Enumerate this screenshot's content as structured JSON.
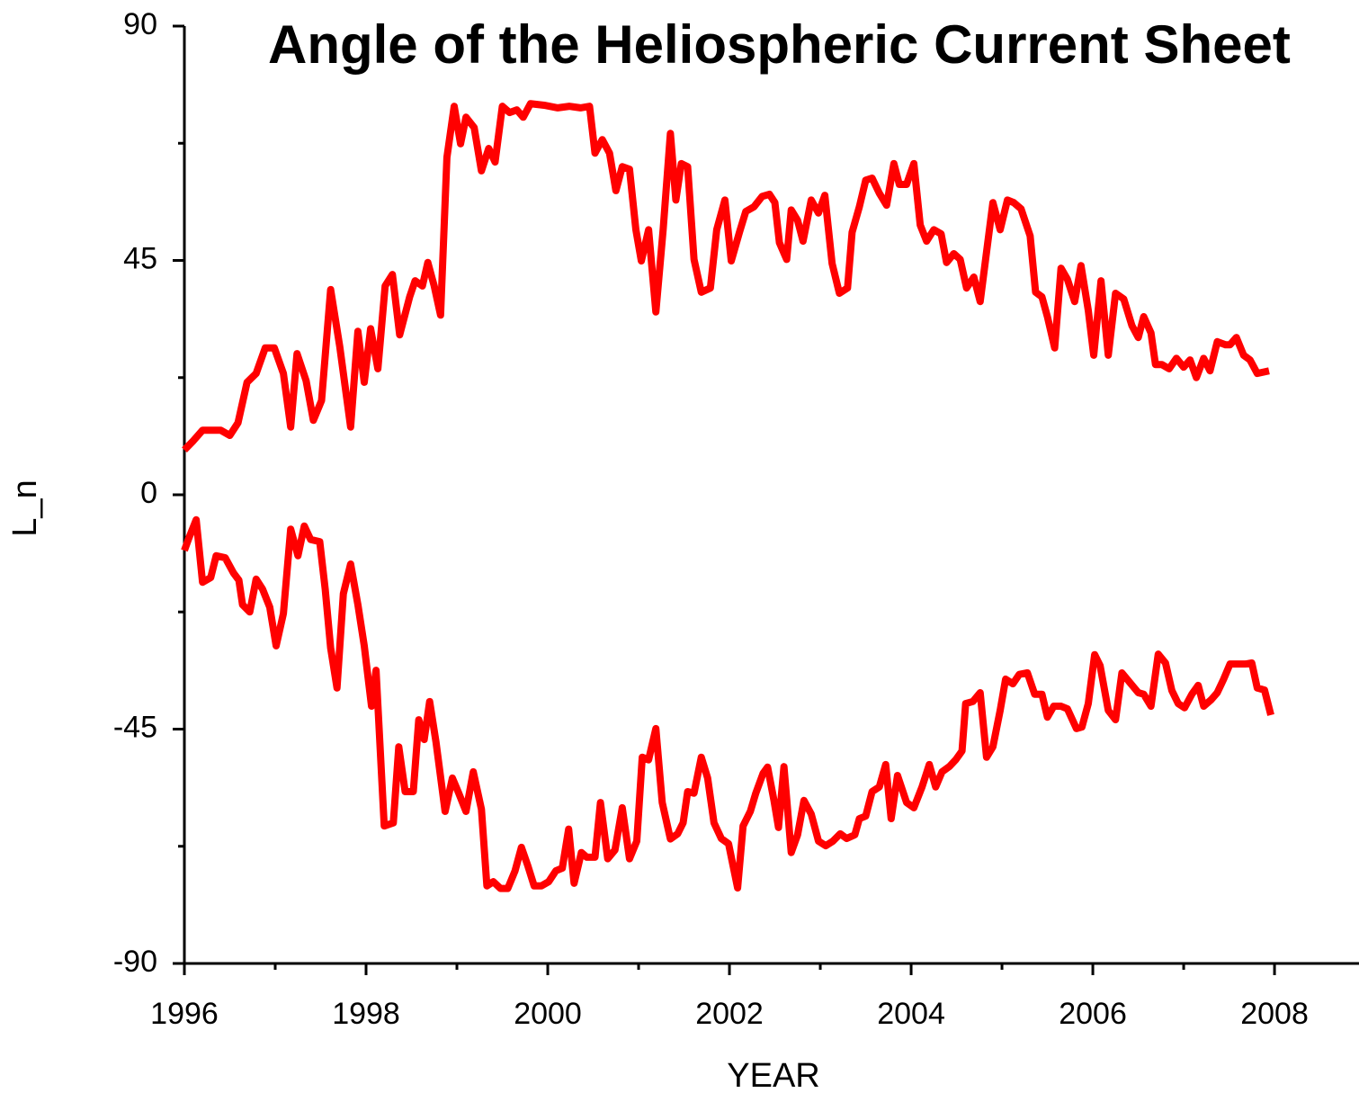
{
  "chart_data": {
    "type": "line",
    "title": "Angle of the Heliospheric Current Sheet",
    "xlabel": "YEAR",
    "ylabel": "L_n",
    "xlim": [
      1996,
      2008.93
    ],
    "ylim": [
      -90,
      90
    ],
    "xticks": [
      1996,
      1998,
      2000,
      2002,
      2004,
      2006,
      2008
    ],
    "xticks_minor": [
      1997,
      1999,
      2001,
      2003,
      2005,
      2007
    ],
    "yticks": [
      -90,
      -45,
      0,
      45,
      90
    ],
    "yticks_minor": [
      -67.5,
      -22.5,
      22.5,
      67.5
    ],
    "grid": false,
    "series": [
      {
        "color": "#ff0000",
        "x": [
          1996.0,
          1996.1,
          1996.2,
          1996.4,
          1996.5,
          1996.59,
          1996.69,
          1996.79,
          1996.89,
          1996.99,
          1997.09,
          1997.17,
          1997.24,
          1997.34,
          1997.42,
          1997.51,
          1997.61,
          1997.71,
          1997.83,
          1997.91,
          1997.98,
          1998.05,
          1998.13,
          1998.21,
          1998.29,
          1998.37,
          1998.48,
          1998.54,
          1998.62,
          1998.68,
          1998.75,
          1998.82,
          1998.89,
          1998.97,
          1999.04,
          1999.1,
          1999.19,
          1999.27,
          1999.35,
          1999.42,
          1999.5,
          1999.58,
          1999.66,
          1999.73,
          1999.81,
          1999.96,
          2000.11,
          2000.24,
          2000.36,
          2000.46,
          2000.52,
          2000.6,
          2000.68,
          2000.75,
          2000.82,
          2000.9,
          2000.97,
          2001.03,
          2001.11,
          2001.19,
          2001.27,
          2001.35,
          2001.41,
          2001.47,
          2001.54,
          2001.61,
          2001.69,
          2001.79,
          2001.86,
          2001.95,
          2002.02,
          2002.11,
          2002.18,
          2002.27,
          2002.36,
          2002.44,
          2002.5,
          2002.55,
          2002.63,
          2002.68,
          2002.75,
          2002.81,
          2002.9,
          2002.98,
          2003.05,
          2003.13,
          2003.21,
          2003.3,
          2003.35,
          2003.43,
          2003.5,
          2003.57,
          2003.65,
          2003.73,
          2003.81,
          2003.87,
          2003.95,
          2004.03,
          2004.1,
          2004.17,
          2004.25,
          2004.33,
          2004.39,
          2004.47,
          2004.54,
          2004.61,
          2004.69,
          2004.76,
          2004.83,
          2004.9,
          2004.98,
          2005.06,
          2005.13,
          2005.21,
          2005.31,
          2005.37,
          2005.44,
          2005.5,
          2005.58,
          2005.65,
          2005.72,
          2005.8,
          2005.87,
          2005.95,
          2006.01,
          2006.09,
          2006.17,
          2006.25,
          2006.34,
          2006.43,
          2006.5,
          2006.56,
          2006.64,
          2006.69,
          2006.76,
          2006.84,
          2006.92,
          2007.0,
          2007.07,
          2007.14,
          2007.22,
          2007.29,
          2007.37,
          2007.46,
          2007.51,
          2007.58,
          2007.66,
          2007.73,
          2007.81,
          2007.94
        ],
        "values": [
          8.6,
          10.4,
          12.4,
          12.4,
          11.4,
          13.8,
          21.6,
          23.3,
          28.2,
          28.2,
          23.3,
          13.0,
          27.1,
          21.9,
          14.3,
          18.1,
          39.4,
          28.5,
          13.0,
          31.4,
          21.6,
          31.9,
          24.2,
          40.1,
          42.3,
          30.7,
          38.0,
          41.1,
          40.1,
          44.6,
          40.1,
          34.5,
          64.8,
          74.6,
          67.4,
          72.5,
          70.5,
          62.2,
          66.5,
          63.9,
          74.6,
          73.4,
          73.9,
          72.5,
          75.1,
          74.8,
          74.3,
          74.6,
          74.3,
          74.6,
          65.6,
          68.2,
          65.6,
          58.4,
          63.0,
          62.5,
          50.9,
          44.9,
          50.9,
          35.1,
          50.9,
          69.4,
          56.6,
          63.6,
          63.0,
          45.2,
          38.9,
          39.7,
          50.9,
          56.6,
          44.9,
          50.4,
          54.4,
          55.3,
          57.3,
          57.7,
          56.1,
          48.4,
          45.2,
          54.7,
          52.7,
          48.7,
          56.6,
          54.1,
          57.5,
          44.4,
          38.7,
          39.7,
          50.4,
          55.3,
          60.4,
          60.8,
          57.9,
          55.6,
          63.6,
          59.6,
          59.6,
          63.6,
          51.8,
          48.7,
          50.9,
          50.1,
          44.6,
          46.3,
          45.2,
          39.7,
          41.8,
          37.1,
          46.6,
          56.1,
          50.9,
          56.6,
          56.1,
          54.9,
          49.7,
          38.9,
          38.0,
          34.2,
          28.2,
          43.5,
          41.4,
          37.1,
          44.0,
          35.4,
          26.8,
          41.1,
          26.8,
          38.7,
          37.6,
          32.5,
          30.2,
          34.2,
          31.1,
          25.0,
          25.0,
          24.2,
          26.2,
          24.5,
          25.9,
          22.5,
          26.2,
          23.8,
          29.4,
          28.8,
          28.8,
          30.2,
          26.8,
          25.9,
          23.3,
          23.8
        ]
      },
      {
        "color": "#ff0000",
        "x": [
          1996.0,
          1996.05,
          1996.13,
          1996.2,
          1996.29,
          1996.35,
          1996.45,
          1996.54,
          1996.6,
          1996.64,
          1996.72,
          1996.79,
          1996.86,
          1996.94,
          1997.01,
          1997.09,
          1997.17,
          1997.25,
          1997.32,
          1997.39,
          1997.49,
          1997.55,
          1997.61,
          1997.68,
          1997.75,
          1997.83,
          1997.91,
          1997.98,
          1998.06,
          1998.11,
          1998.2,
          1998.3,
          1998.36,
          1998.43,
          1998.52,
          1998.58,
          1998.64,
          1998.7,
          1998.77,
          1998.87,
          1998.95,
          1999.02,
          1999.1,
          1999.18,
          1999.27,
          1999.33,
          1999.4,
          1999.48,
          1999.56,
          1999.64,
          1999.71,
          1999.78,
          1999.85,
          1999.93,
          2000.01,
          2000.09,
          2000.16,
          2000.23,
          2000.29,
          2000.37,
          2000.43,
          2000.52,
          2000.58,
          2000.66,
          2000.74,
          2000.82,
          2000.9,
          2000.98,
          2001.04,
          2001.11,
          2001.19,
          2001.26,
          2001.35,
          2001.43,
          2001.49,
          2001.54,
          2001.61,
          2001.69,
          2001.76,
          2001.83,
          2001.91,
          2001.99,
          2002.09,
          2002.15,
          2002.23,
          2002.29,
          2002.37,
          2002.42,
          2002.49,
          2002.54,
          2002.6,
          2002.68,
          2002.75,
          2002.82,
          2002.9,
          2002.98,
          2003.06,
          2003.14,
          2003.22,
          2003.29,
          2003.38,
          2003.43,
          2003.5,
          2003.57,
          2003.65,
          2003.72,
          2003.78,
          2003.85,
          2003.95,
          2004.03,
          2004.12,
          2004.2,
          2004.27,
          2004.34,
          2004.42,
          2004.49,
          2004.56,
          2004.6,
          2004.68,
          2004.76,
          2004.83,
          2004.9,
          2004.98,
          2005.04,
          2005.12,
          2005.19,
          2005.28,
          2005.36,
          2005.44,
          2005.5,
          2005.57,
          2005.65,
          2005.72,
          2005.82,
          2005.88,
          2005.95,
          2006.02,
          2006.08,
          2006.17,
          2006.25,
          2006.32,
          2006.4,
          2006.5,
          2006.56,
          2006.64,
          2006.72,
          2006.8,
          2006.87,
          2006.94,
          2007.01,
          2007.09,
          2007.16,
          2007.22,
          2007.3,
          2007.37,
          2007.44,
          2007.51,
          2007.68,
          2007.75,
          2007.81,
          2007.89,
          2007.96
        ],
        "values": [
          -10.7,
          -8.3,
          -4.8,
          -16.8,
          -15.9,
          -11.7,
          -12.1,
          -15.0,
          -16.4,
          -21.1,
          -22.5,
          -16.2,
          -18.1,
          -21.6,
          -29.0,
          -22.8,
          -6.6,
          -11.7,
          -6.0,
          -8.6,
          -9.0,
          -18.1,
          -29.4,
          -37.1,
          -19.0,
          -13.3,
          -21.1,
          -29.0,
          -40.6,
          -33.7,
          -63.6,
          -63.0,
          -48.4,
          -57.0,
          -57.0,
          -43.2,
          -47.0,
          -39.7,
          -47.5,
          -60.8,
          -54.4,
          -57.3,
          -60.8,
          -53.2,
          -60.4,
          -75.1,
          -74.3,
          -75.6,
          -75.6,
          -72.2,
          -67.7,
          -71.2,
          -75.1,
          -75.1,
          -74.3,
          -72.2,
          -71.7,
          -64.2,
          -74.6,
          -68.7,
          -69.6,
          -69.6,
          -59.1,
          -69.9,
          -68.2,
          -60.1,
          -69.9,
          -66.5,
          -50.4,
          -50.9,
          -44.9,
          -59.1,
          -66.1,
          -65.1,
          -63.0,
          -57.0,
          -57.3,
          -50.4,
          -54.4,
          -63.0,
          -66.0,
          -67.0,
          -75.5,
          -63.6,
          -60.8,
          -57.3,
          -53.5,
          -52.3,
          -58.7,
          -63.9,
          -52.2,
          -68.7,
          -65.3,
          -58.7,
          -61.3,
          -66.5,
          -67.4,
          -66.5,
          -65.1,
          -66.0,
          -65.3,
          -62.2,
          -61.7,
          -57.0,
          -56.1,
          -51.8,
          -62.2,
          -53.9,
          -59.1,
          -60.1,
          -56.1,
          -51.8,
          -56.1,
          -53.2,
          -52.2,
          -50.9,
          -49.2,
          -40.1,
          -39.7,
          -38.0,
          -50.4,
          -48.4,
          -41.4,
          -35.4,
          -36.3,
          -34.5,
          -34.2,
          -38.3,
          -38.3,
          -42.7,
          -40.6,
          -40.6,
          -41.1,
          -44.9,
          -44.6,
          -40.1,
          -30.7,
          -32.8,
          -41.4,
          -43.2,
          -34.2,
          -35.9,
          -38.0,
          -38.3,
          -40.6,
          -30.6,
          -32.3,
          -37.6,
          -40.1,
          -40.9,
          -38.3,
          -36.6,
          -40.6,
          -39.4,
          -38.0,
          -35.4,
          -32.5,
          -32.5,
          -32.3,
          -37.1,
          -37.5,
          -42.3
        ]
      }
    ]
  }
}
